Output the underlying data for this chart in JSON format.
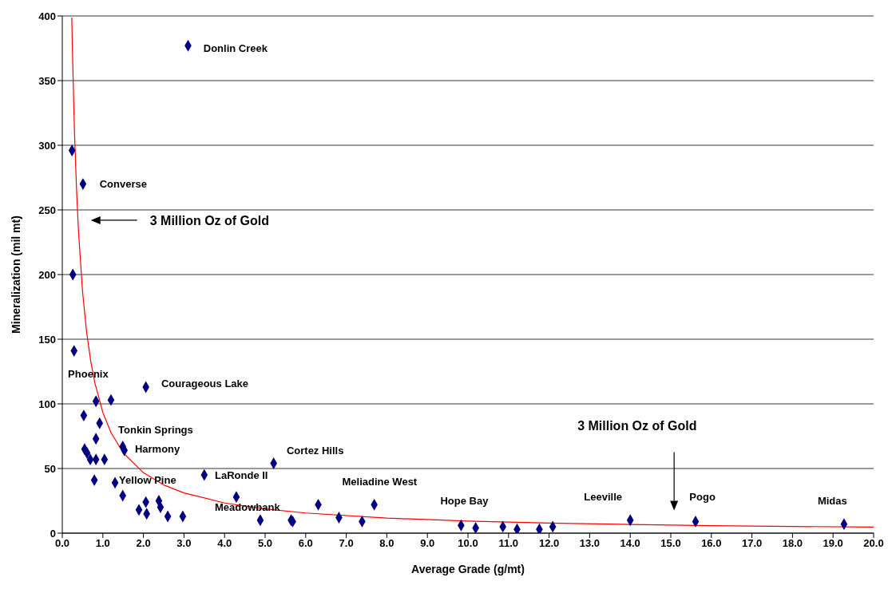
{
  "chart_data": {
    "type": "scatter",
    "xlabel": "Average Grade (g/mt)",
    "ylabel": "Mineralization (mil mt)",
    "xlim": [
      0,
      20
    ],
    "ylim": [
      0,
      400
    ],
    "xticks": [
      {
        "value": 0,
        "label": "0.0"
      },
      {
        "value": 1,
        "label": "1.0"
      },
      {
        "value": 2,
        "label": "2.0"
      },
      {
        "value": 3,
        "label": "3.0"
      },
      {
        "value": 4,
        "label": "4.0"
      },
      {
        "value": 5,
        "label": "5.0"
      },
      {
        "value": 6,
        "label": "6.0"
      },
      {
        "value": 7,
        "label": "7.0"
      },
      {
        "value": 8,
        "label": "8.0"
      },
      {
        "value": 9,
        "label": "9.0"
      },
      {
        "value": 10,
        "label": "10.0"
      },
      {
        "value": 11,
        "label": "11.0"
      },
      {
        "value": 12,
        "label": "12.0"
      },
      {
        "value": 13,
        "label": "13.0"
      },
      {
        "value": 14,
        "label": "14.0"
      },
      {
        "value": 15,
        "label": "15.0"
      },
      {
        "value": 16,
        "label": "16.0"
      },
      {
        "value": 17,
        "label": "17.0"
      },
      {
        "value": 18,
        "label": "18.0"
      },
      {
        "value": 19,
        "label": "19.0"
      },
      {
        "value": 20,
        "label": "20.0"
      }
    ],
    "yticks": [
      0,
      50,
      100,
      150,
      200,
      250,
      300,
      350,
      400
    ],
    "grid": "y",
    "legend": false,
    "series": [
      {
        "type": "scatter",
        "color": "#000080",
        "marker": "diamond",
        "x": [
          3.1,
          0.24,
          0.51,
          0.26,
          0.29,
          2.06,
          0.83,
          1.2,
          0.53,
          0.92,
          0.83,
          1.49,
          1.53,
          0.55,
          0.61,
          0.69,
          0.83,
          1.04,
          0.79,
          1.3,
          1.49,
          2.06,
          2.38,
          2.42,
          1.89,
          2.08,
          2.6,
          2.97,
          3.5,
          5.21,
          4.29,
          4.88,
          5.68,
          5.64,
          6.31,
          6.82,
          7.39,
          7.69,
          9.83,
          10.19,
          10.86,
          11.21,
          11.76,
          12.09,
          14.0,
          15.61,
          19.27
        ],
        "values": [
          377,
          296,
          270,
          200,
          141,
          113,
          102,
          103,
          91,
          85,
          73,
          67,
          64,
          65,
          62,
          57,
          57,
          57,
          41,
          39,
          29,
          24,
          25,
          20,
          18,
          15,
          13,
          13,
          45,
          54,
          28,
          10,
          9,
          10,
          22,
          12,
          9,
          22,
          6,
          4,
          5,
          3,
          3,
          5,
          10,
          9,
          7
        ]
      },
      {
        "type": "line",
        "color": "#ff0000",
        "marker": "none",
        "line_style": "solid",
        "x": [
          0.234,
          0.25,
          0.3,
          0.35,
          0.4,
          0.5,
          0.6,
          0.7,
          0.8,
          1,
          1.2,
          1.5,
          2,
          2.5,
          3,
          4,
          5,
          6,
          8,
          10,
          12,
          14,
          16,
          18,
          20
        ],
        "values": [
          398.7,
          373.2,
          311,
          266.6,
          233.3,
          186.6,
          155.5,
          133.3,
          116.6,
          93.3,
          77.8,
          62.2,
          46.7,
          37.3,
          31.1,
          23.3,
          18.7,
          15.6,
          11.7,
          9.3,
          7.8,
          6.7,
          5.8,
          5.2,
          4.7
        ]
      }
    ],
    "annotations": [
      "3 Million Oz of Gold",
      "3 Million Oz of Gold",
      "Donlin Creek",
      "Converse",
      "Phoenix",
      "Courageous Lake",
      "Tonkin Springs",
      "Harmony",
      "Yellow Pine",
      "LaRonde II",
      "Cortez Hills",
      "Meadowbank",
      "Meliadine West",
      "Hope Bay",
      "Leeville",
      "Pogo",
      "Midas"
    ]
  }
}
